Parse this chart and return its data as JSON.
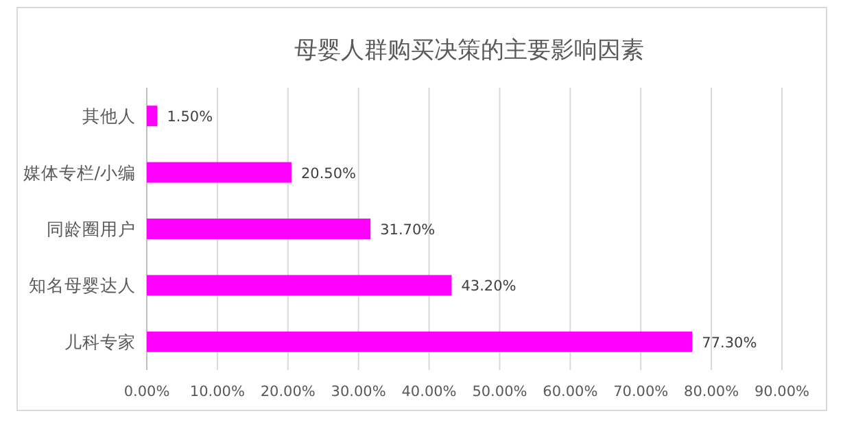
{
  "chart_data": {
    "type": "bar",
    "orientation": "horizontal",
    "title": "母婴人群购买决策的主要影响因素",
    "categories": [
      "其他人",
      "媒体专栏/小编",
      "同龄圈用户",
      "知名母婴达人",
      "儿科专家"
    ],
    "values": [
      1.5,
      20.5,
      31.7,
      43.2,
      77.3
    ],
    "value_labels": [
      "1.50%",
      "20.50%",
      "31.70%",
      "43.20%",
      "77.30%"
    ],
    "color": "#ff00ff",
    "xlim": [
      0,
      90
    ],
    "xticks": [
      {
        "value": 0,
        "label": "0.00%"
      },
      {
        "value": 10,
        "label": "10.00%"
      },
      {
        "value": 20,
        "label": "20.00%"
      },
      {
        "value": 30,
        "label": "30.00%"
      },
      {
        "value": 40,
        "label": "40.00%"
      },
      {
        "value": 50,
        "label": "50.00%"
      },
      {
        "value": 60,
        "label": "60.00%"
      },
      {
        "value": 70,
        "label": "70.00%"
      },
      {
        "value": 80,
        "label": "80.00%"
      },
      {
        "value": 90,
        "label": "90.00%"
      }
    ],
    "grid": "x",
    "legend": false
  }
}
